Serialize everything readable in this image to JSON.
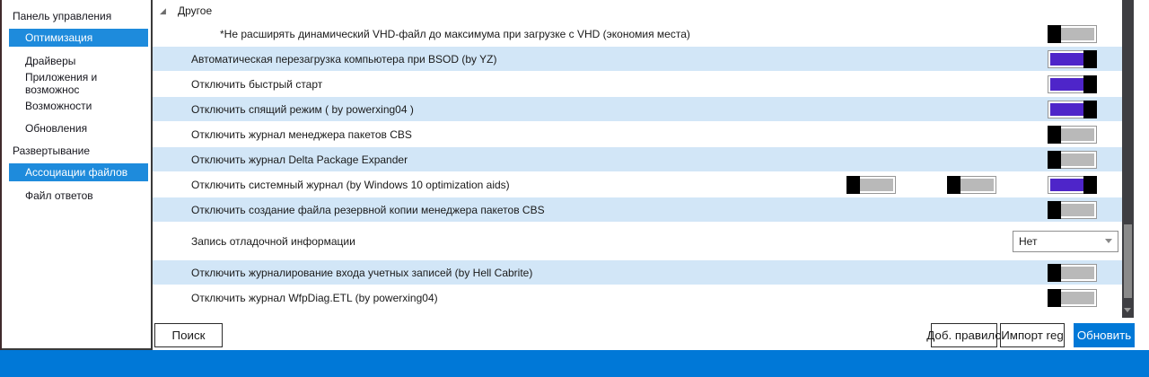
{
  "sidebar": {
    "items": [
      {
        "label": "Панель управления",
        "level": 0,
        "selected": false
      },
      {
        "label": "Оптимизация",
        "level": 1,
        "selected": true
      },
      {
        "label": "Драйверы",
        "level": 1,
        "selected": false
      },
      {
        "label": "Приложения и возможнос",
        "level": 1,
        "selected": false
      },
      {
        "label": "Возможности",
        "level": 1,
        "selected": false
      },
      {
        "label": "Обновления",
        "level": 1,
        "selected": false
      },
      {
        "label": "Развертывание",
        "level": 0,
        "selected": false
      },
      {
        "label": "Ассоциации файлов",
        "level": 1,
        "selected": true
      },
      {
        "label": "Файл ответов",
        "level": 1,
        "selected": false
      }
    ]
  },
  "main": {
    "section": {
      "label": "Другое",
      "expanded": true
    },
    "rows": [
      {
        "label": "*Не расширять динамический VHD-файл до максимума при загрузке с VHD (экономия места)",
        "striped": false,
        "indent": true,
        "toggles": [
          "off"
        ]
      },
      {
        "label": "Автоматическая перезагрузка компьютера при BSOD (by YZ)",
        "striped": true,
        "indent": false,
        "toggles": [
          "on"
        ]
      },
      {
        "label": "Отключить быстрый старт",
        "striped": false,
        "indent": false,
        "toggles": [
          "on"
        ]
      },
      {
        "label": "Отключить спящий режим ( by powerxing04 )",
        "striped": true,
        "indent": false,
        "toggles": [
          "on"
        ]
      },
      {
        "label": "Отключить журнал менеджера пакетов CBS",
        "striped": false,
        "indent": false,
        "toggles": [
          "off"
        ]
      },
      {
        "label": "Отключить журнал Delta Package Expander",
        "striped": true,
        "indent": false,
        "toggles": [
          "off"
        ]
      },
      {
        "label": "Отключить системный журнал (by Windows 10 optimization aids)",
        "striped": false,
        "indent": false,
        "toggles": [
          "off",
          "off",
          "on"
        ]
      },
      {
        "label": "Отключить создание файла резервной копии менеджера пакетов CBS",
        "striped": true,
        "indent": false,
        "toggles": [
          "off"
        ]
      },
      {
        "label": "Запись отладочной информации",
        "striped": false,
        "indent": false,
        "control": "dropdown",
        "dropdown_value": "Нет"
      },
      {
        "label": "Отключить журналирование входа учетных записей (by Hell Cabrite)",
        "striped": true,
        "indent": false,
        "toggles": [
          "off"
        ]
      },
      {
        "label": "Отключить журнал WfpDiag.ETL (by powerxing04)",
        "striped": false,
        "indent": false,
        "toggles": [
          "off"
        ]
      }
    ]
  },
  "footer": {
    "search_label": "Поиск",
    "add_rule_label": "Доб. правило",
    "import_reg_label": "Импорт reg",
    "update_label": "Обновить"
  },
  "scrollbar": {
    "orientation": "vertical",
    "thumb_position": "lower"
  },
  "colors": {
    "accent_blue": "#0078d7",
    "sidebar_selection_blue": "#1e8bdc",
    "row_stripe_blue": "#d2e6f7",
    "toggle_on_purple": "#4e25c9",
    "toggle_knob_black": "#000000",
    "toggle_off_gray": "#b9b9b9",
    "scrollbar_track_dark": "#3e3e42",
    "window_edge_maroon": "#402a2c"
  }
}
